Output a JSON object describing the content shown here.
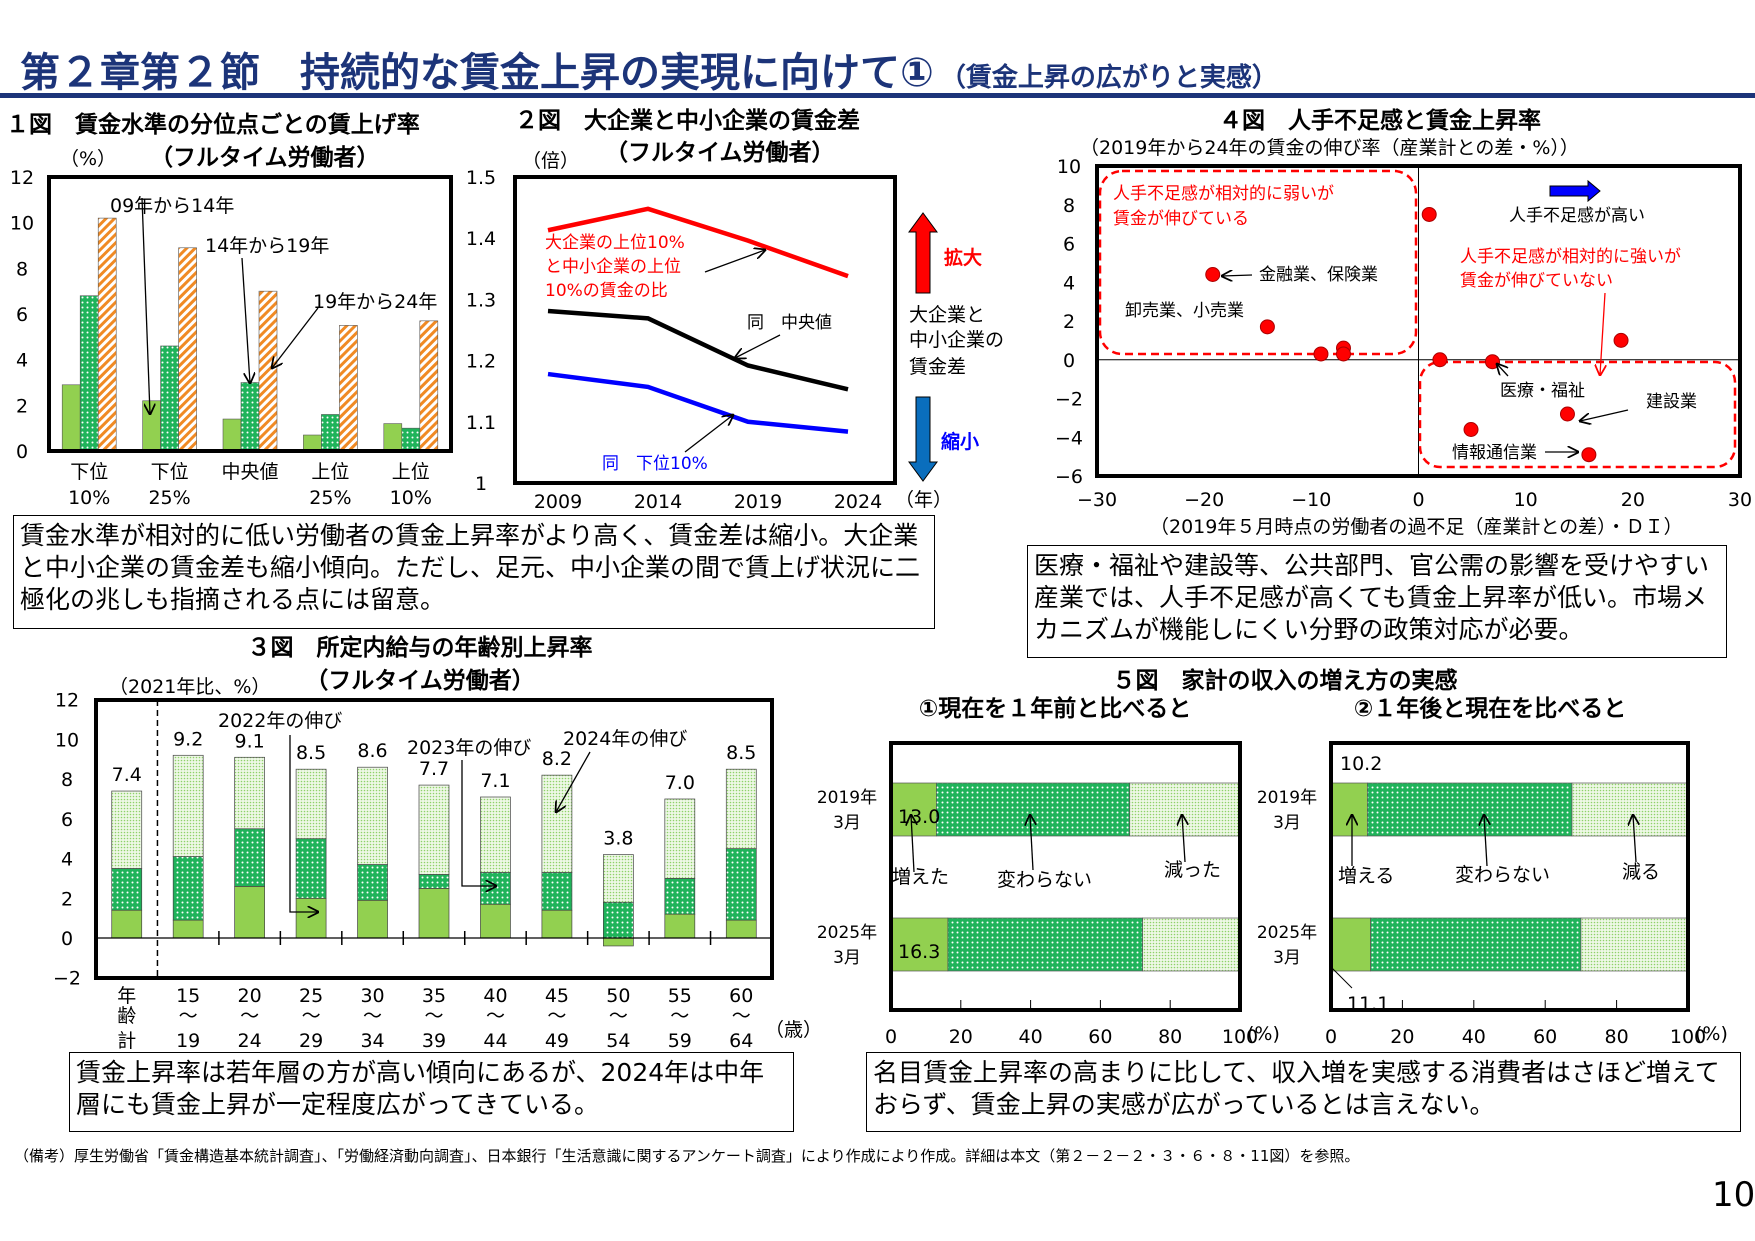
{
  "header": {
    "title": "第２章第２節　持続的な賃金上昇の実現に向けて①",
    "subtitle": "（賃金上昇の広がりと実感）"
  },
  "colors": {
    "title": "#1c3479",
    "red": "#ff0000",
    "blue": "#0000ff",
    "light_green": "#92d050",
    "green": "#1fb35a",
    "orange": "#f08a24"
  },
  "boxes": {
    "fig1_2": "賃金水準が相対的に低い労働者の賃金上昇率がより高く、賃金差は縮小。大企業と中小企業の賃金差も縮小傾向。ただし、足元、中小企業の間で賃上げ状況に二極化の兆しも指摘される点には留意。",
    "fig4": "医療・福祉や建設等、公共部門、官公需の影響を受けやすい産業では、人手不足感が高くても賃金上昇率が低い。市場メカニズムが機能しにくい分野の政策対応が必要。",
    "fig3": "賃金上昇率は若年層の方が高い傾向にあるが、2024年は中年層にも賃金上昇が一定程度広がってきている。",
    "fig5": "名目賃金上昇率の高まりに比して、収入増を実感する消費者はさほど増えておらず、賃金上昇の実感が広がっているとは言えない。"
  },
  "footnote": "（備考）厚生労働省「賃金構造基本統計調査」、「労働経済動向調査」、日本銀行「生活意識に関するアンケート調査」により作成により作成。詳細は本文（第２－２－２・３・６・８・11図）を参照。",
  "page_number": "10",
  "chart_data": [
    {
      "type": "bar",
      "title": "１図　賃金水準の分位点ごとの賃上げ率",
      "subtitle": "（フルタイム労働者）",
      "ylabel": "（%）",
      "ylim": [
        0,
        12
      ],
      "ytick_labels": [
        "0",
        "2",
        "4",
        "6",
        "8",
        "10",
        "12"
      ],
      "categories": [
        [
          "下位",
          "10%"
        ],
        [
          "下位",
          "25%"
        ],
        [
          "中央値",
          ""
        ],
        [
          "上位",
          "25%"
        ],
        [
          "上位",
          "10%"
        ]
      ],
      "series": [
        {
          "name": "09年から14年",
          "values": [
            2.9,
            2.2,
            1.4,
            0.7,
            1.2
          ]
        },
        {
          "name": "14年から19年",
          "values": [
            6.8,
            4.6,
            3.0,
            1.6,
            1.0
          ]
        },
        {
          "name": "19年から24年",
          "values": [
            10.2,
            8.9,
            7.0,
            5.5,
            5.7
          ]
        }
      ]
    },
    {
      "type": "line",
      "title": "２図　大企業と中小企業の賃金差",
      "subtitle": "（フルタイム労働者）",
      "ylabel": "（倍）",
      "ylim": [
        1.0,
        1.5
      ],
      "ytick_labels": [
        "1",
        "1.1",
        "1.2",
        "1.3",
        "1.4",
        "1.5"
      ],
      "x": [
        "2009",
        "2014",
        "2019",
        "2024"
      ],
      "xunit": "（年）",
      "series": [
        {
          "name_lines": [
            "大企業の上位10%",
            "と中小企業の上位",
            "10%の賃金の比"
          ],
          "color": "#ff0000",
          "values": [
            1.413,
            1.448,
            1.396,
            1.338
          ]
        },
        {
          "name_lines": [
            "同　中央値"
          ],
          "color": "#000000",
          "values": [
            1.281,
            1.269,
            1.192,
            1.153
          ]
        },
        {
          "name_lines": [
            "同　下位10%"
          ],
          "color": "#0000ff",
          "values": [
            1.178,
            1.157,
            1.1,
            1.084
          ]
        }
      ],
      "legend": {
        "up": "拡大",
        "middle": [
          "大企業と",
          "中小企業の",
          "賃金差"
        ],
        "down": "縮小"
      }
    },
    {
      "type": "bar",
      "stacked": true,
      "title": "３図　所定内給与の年齢別上昇率",
      "subtitle": "（フルタイム労働者）",
      "ylabel": "（2021年比、%）",
      "ylim": [
        -2,
        12
      ],
      "ytick_labels": [
        "−2",
        "0",
        "2",
        "4",
        "6",
        "8",
        "10",
        "12"
      ],
      "xunit": "（歳）",
      "categories": [
        [
          "年",
          "齢",
          "計"
        ],
        [
          "15",
          "～",
          "19"
        ],
        [
          "20",
          "～",
          "24"
        ],
        [
          "25",
          "～",
          "29"
        ],
        [
          "30",
          "～",
          "34"
        ],
        [
          "35",
          "～",
          "39"
        ],
        [
          "40",
          "～",
          "44"
        ],
        [
          "45",
          "～",
          "49"
        ],
        [
          "50",
          "～",
          "54"
        ],
        [
          "55",
          "～",
          "59"
        ],
        [
          "60",
          "～",
          "64"
        ]
      ],
      "series": [
        {
          "name": "2022年の伸び",
          "values": [
            1.4,
            0.9,
            2.6,
            2.0,
            1.9,
            2.5,
            1.7,
            1.4,
            -0.4,
            1.2,
            0.9
          ]
        },
        {
          "name": "2023年の伸び",
          "values": [
            2.1,
            3.2,
            2.9,
            3.0,
            1.8,
            0.7,
            1.6,
            1.9,
            1.8,
            1.8,
            3.6
          ]
        },
        {
          "name": "2024年の伸び",
          "values": [
            3.9,
            5.1,
            3.6,
            3.5,
            4.9,
            4.5,
            3.8,
            4.9,
            2.4,
            4.0,
            4.0
          ]
        }
      ],
      "totals": [
        "7.4",
        "9.2",
        "9.1",
        "8.5",
        "8.6",
        "7.7",
        "7.1",
        "8.2",
        "3.8",
        "7.0",
        "8.5"
      ]
    },
    {
      "type": "scatter",
      "title": "４図　人手不足感と賃金上昇率",
      "ylabel": "（2019年から24年の賃金の伸び率（産業計との差・%））",
      "xlabel": "（2019年５月時点の労働者の過不足（産業計との差）・ＤＩ）",
      "xlim": [
        -30,
        30
      ],
      "ylim": [
        -6,
        10
      ],
      "xtick_labels": [
        "−30",
        "−20",
        "−10",
        "0",
        "10",
        "20",
        "30"
      ],
      "ytick_labels": [
        "−6",
        "−4",
        "−2",
        "0",
        "2",
        "4",
        "6",
        "8",
        "10"
      ],
      "points": [
        {
          "x": -19.2,
          "y": 4.4,
          "label": "金融業、保険業"
        },
        {
          "x": -14.1,
          "y": 1.7,
          "label": "卸売業、小売業"
        },
        {
          "x": -9.1,
          "y": 0.3
        },
        {
          "x": -7.0,
          "y": 0.6
        },
        {
          "x": -7.0,
          "y": 0.3
        },
        {
          "x": 1.0,
          "y": 7.5
        },
        {
          "x": 2.0,
          "y": 0.0
        },
        {
          "x": 6.9,
          "y": -0.1,
          "label": "医療・福祉"
        },
        {
          "x": 18.9,
          "y": 1.0
        },
        {
          "x": 13.9,
          "y": -2.8,
          "label": "建設業"
        },
        {
          "x": 4.9,
          "y": -3.6
        },
        {
          "x": 15.9,
          "y": -4.9,
          "label": "情報通信業"
        }
      ],
      "annotations": {
        "weak": [
          "人手不足感が相対的に弱いが",
          "賃金が伸びている"
        ],
        "strong": [
          "人手不足感が相対的に強いが",
          "賃金が伸びていない"
        ],
        "direction": "人手不足感が高い"
      }
    },
    {
      "type": "bar",
      "orientation": "horizontal",
      "stacked": true,
      "title": "５図　家計の収入の増え方の実感",
      "subtitle": "①現在を１年前と比べると",
      "categories": [
        [
          "2019年",
          "3月"
        ],
        [
          "2025年",
          "3月"
        ]
      ],
      "series": [
        {
          "name": "増えた",
          "values": [
            13.0,
            16.3
          ]
        },
        {
          "name": "変わらない",
          "values": [
            55.4,
            55.8
          ]
        },
        {
          "name": "減った",
          "values": [
            31.6,
            27.9
          ]
        }
      ],
      "value_labels": [
        "13.0",
        "16.3"
      ],
      "xlim": [
        0,
        100
      ],
      "xtick_labels": [
        "0",
        "20",
        "40",
        "60",
        "80",
        "100"
      ],
      "xunit": "(%)"
    },
    {
      "type": "bar",
      "orientation": "horizontal",
      "stacked": true,
      "subtitle": "②１年後と現在を比べると",
      "categories": [
        [
          "2019年",
          "3月"
        ],
        [
          "2025年",
          "3月"
        ]
      ],
      "series": [
        {
          "name": "増える",
          "values": [
            10.2,
            11.1
          ]
        },
        {
          "name": "変わらない",
          "values": [
            57.3,
            58.9
          ]
        },
        {
          "name": "減る",
          "values": [
            32.5,
            30.0
          ]
        }
      ],
      "value_labels": [
        "10.2",
        "11.1"
      ],
      "xlim": [
        0,
        100
      ],
      "xtick_labels": [
        "0",
        "20",
        "40",
        "60",
        "80",
        "100"
      ],
      "xunit": "(%)"
    }
  ]
}
